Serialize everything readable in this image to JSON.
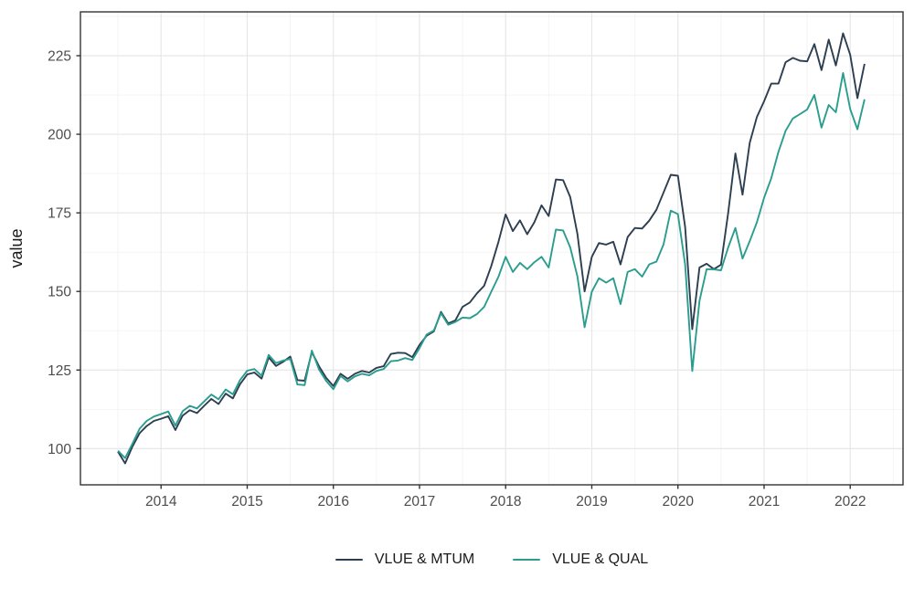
{
  "chart_data": {
    "type": "line",
    "title": "",
    "xlabel": "",
    "ylabel": "value",
    "x_unit": "decimal year, monthly points",
    "x_start": 2013.5,
    "x_step": 0.0833333,
    "xlim": [
      2013.064,
      2022.613
    ],
    "ylim": [
      88.48,
      238.94
    ],
    "x_ticks": [
      2014,
      2015,
      2016,
      2017,
      2018,
      2019,
      2020,
      2021,
      2022
    ],
    "x_tick_labels": [
      "2014",
      "2015",
      "2016",
      "2017",
      "2018",
      "2019",
      "2020",
      "2021",
      "2022"
    ],
    "x_minor": [
      2013.5,
      2014.5,
      2015.5,
      2016.5,
      2017.5,
      2018.5,
      2019.5,
      2020.5,
      2021.5,
      2022.5
    ],
    "y_ticks": [
      100,
      125,
      150,
      175,
      200,
      225
    ],
    "y_tick_labels": [
      "100",
      "125",
      "150",
      "175",
      "200",
      "225"
    ],
    "y_minor": [
      112.5,
      137.5,
      162.5,
      187.5,
      212.5,
      237.5
    ],
    "grid": true,
    "legend_position": "bottom",
    "colors": {
      "panel_border": "#333333",
      "grid_major": "#e7e7e7",
      "grid_minor": "#f3f3f3",
      "tick_mark": "#333333",
      "tick_text": "#4d4d4d",
      "background": "#ffffff"
    },
    "series": [
      {
        "name": "VLUE & MTUM",
        "color": "#2c3e50",
        "values": [
          99.0,
          95.3,
          100.6,
          104.9,
          107.2,
          108.8,
          109.5,
          110.3,
          105.9,
          110.5,
          112.2,
          111.3,
          113.6,
          115.8,
          114.2,
          117.5,
          116.0,
          120.5,
          123.6,
          124.2,
          122.3,
          129.0,
          126.3,
          127.6,
          129.3,
          121.8,
          121.6,
          130.7,
          126.2,
          122.5,
          119.9,
          123.8,
          122.2,
          123.8,
          124.7,
          124.2,
          125.7,
          126.2,
          130.1,
          130.5,
          130.4,
          129.1,
          133.0,
          135.9,
          137.3,
          143.5,
          139.8,
          140.8,
          145.1,
          146.5,
          149.4,
          151.8,
          158.1,
          165.8,
          174.5,
          169.2,
          172.6,
          168.2,
          172.0,
          177.4,
          174.0,
          185.6,
          185.4,
          180.0,
          168.2,
          150.0,
          161.0,
          165.4,
          164.9,
          165.8,
          158.6,
          167.3,
          170.2,
          170.0,
          172.5,
          176.0,
          181.5,
          187.1,
          186.8,
          170.5,
          138.0,
          157.6,
          158.8,
          157.1,
          158.5,
          175.0,
          193.9,
          180.8,
          197.3,
          205.5,
          210.5,
          216.1,
          216.1,
          222.9,
          224.3,
          223.4,
          223.2,
          228.7,
          220.4,
          230.1,
          221.9,
          232.1,
          225.3,
          211.5,
          222.4
        ]
      },
      {
        "name": "VLUE & QUAL",
        "color": "#2a9d8f",
        "values": [
          99.3,
          97.0,
          101.5,
          106.3,
          108.8,
          110.2,
          111.0,
          111.8,
          107.3,
          111.9,
          113.6,
          112.8,
          115.0,
          117.2,
          115.7,
          118.8,
          117.3,
          121.8,
          124.8,
          125.3,
          123.2,
          129.8,
          127.2,
          128.0,
          128.6,
          120.4,
          120.2,
          131.2,
          125.2,
          121.5,
          118.9,
          123.1,
          121.4,
          123.0,
          123.8,
          123.3,
          124.7,
          125.3,
          127.8,
          128.0,
          128.8,
          128.2,
          132.0,
          136.3,
          137.6,
          143.1,
          139.4,
          140.3,
          141.7,
          141.5,
          142.8,
          145.1,
          149.9,
          154.7,
          161.0,
          156.2,
          159.1,
          157.1,
          159.3,
          161.0,
          157.6,
          169.7,
          169.4,
          164.0,
          154.7,
          138.6,
          149.9,
          154.2,
          152.8,
          154.2,
          146.0,
          156.2,
          157.1,
          154.7,
          158.6,
          159.5,
          165.0,
          175.7,
          174.6,
          158.6,
          124.7,
          147.0,
          157.1,
          157.0,
          156.7,
          164.0,
          170.2,
          160.5,
          166.0,
          172.0,
          179.8,
          186.0,
          194.4,
          201.1,
          205.0,
          206.4,
          207.9,
          212.5,
          202.1,
          209.3,
          207.0,
          219.5,
          208.0,
          201.6,
          211.1
        ]
      }
    ]
  }
}
